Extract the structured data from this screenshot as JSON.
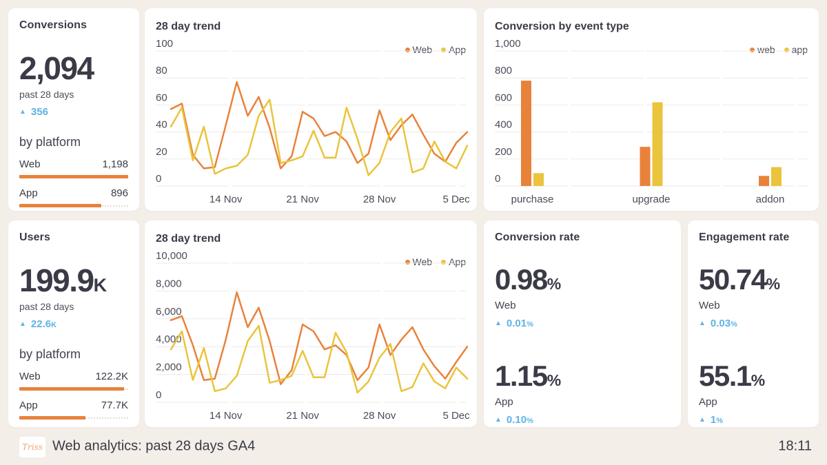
{
  "theme": {
    "background": "#F4EEE8",
    "card": "#FFFFFF",
    "heading": "#3B3B48",
    "muted": "#4B4B57",
    "delta_blue": "#5FB2E5",
    "web_orange": "#E8823B",
    "app_yellow": "#E9C43C",
    "grid": "#ECEAE7"
  },
  "footer": {
    "logo_text": "Triss",
    "title": "Web analytics: past 28 days GA4",
    "time": "18:11"
  },
  "cards": {
    "conversions": {
      "title": "Conversions",
      "value": "2,094",
      "value_suffix": "",
      "period": "past 28 days",
      "delta_value": "356",
      "delta_suffix": "",
      "breakdown_title": "by platform",
      "rows": [
        {
          "label": "Web",
          "value": "1,198",
          "pct": 100
        },
        {
          "label": "App",
          "value": "896",
          "pct": 75
        }
      ]
    },
    "users": {
      "title": "Users",
      "value": "199.9",
      "value_suffix": "K",
      "period": "past 28 days",
      "delta_value": "22.6",
      "delta_suffix": "K",
      "breakdown_title": "by platform",
      "rows": [
        {
          "label": "Web",
          "value": "122.2K",
          "pct": 96
        },
        {
          "label": "App",
          "value": "77.7K",
          "pct": 61
        }
      ]
    },
    "conversion_rate": {
      "title": "Conversion rate",
      "metrics": [
        {
          "value": "0.98",
          "unit": "%",
          "label": "Web",
          "delta_value": "0.01",
          "delta_unit": "%"
        },
        {
          "value": "1.15",
          "unit": "%",
          "label": "App",
          "delta_value": "0.10",
          "delta_unit": "%"
        }
      ]
    },
    "engagement_rate": {
      "title": "Engagement rate",
      "metrics": [
        {
          "value": "50.74",
          "unit": "%",
          "label": "Web",
          "delta_value": "0.03",
          "delta_unit": "%"
        },
        {
          "value": "55.1",
          "unit": "%",
          "label": "App",
          "delta_value": "1",
          "delta_unit": "%"
        }
      ]
    }
  },
  "chart_data": [
    {
      "type": "line",
      "title": "28 day trend",
      "legend_position": "top-right",
      "grid": true,
      "ylim": [
        0,
        100
      ],
      "ytick_values": [
        0,
        20,
        40,
        60,
        80,
        100
      ],
      "ytick_labels": [
        "0",
        "20",
        "40",
        "60",
        "80",
        "100"
      ],
      "x_tick_labels": [
        "14 Nov",
        "21 Nov",
        "28 Nov",
        "5 Dec"
      ],
      "x_tick_indices": [
        5,
        12,
        19,
        26
      ],
      "legend": [
        {
          "name": "Web",
          "color": "#E8823B"
        },
        {
          "name": "App",
          "color": "#E9C43C"
        }
      ],
      "series": [
        {
          "name": "Web",
          "color": "#E8823B",
          "values": [
            57,
            61,
            23,
            13,
            14,
            45,
            77,
            52,
            66,
            43,
            13,
            22,
            55,
            50,
            37,
            40,
            33,
            17,
            24,
            56,
            34,
            45,
            53,
            38,
            24,
            18,
            32,
            40
          ]
        },
        {
          "name": "App",
          "color": "#E9C43C",
          "values": [
            44,
            58,
            19,
            44,
            9,
            13,
            15,
            23,
            52,
            64,
            17,
            19,
            22,
            41,
            21,
            21,
            58,
            35,
            8,
            17,
            40,
            50,
            10,
            13,
            33,
            18,
            13,
            30
          ]
        }
      ]
    },
    {
      "type": "bar",
      "title": "Conversion by event type",
      "legend_position": "top-right",
      "grid": true,
      "ylim": [
        0,
        1000
      ],
      "ytick_values": [
        0,
        200,
        400,
        600,
        800,
        1000
      ],
      "ytick_labels": [
        "0",
        "200",
        "400",
        "600",
        "800",
        "1,000"
      ],
      "categories": [
        "purchase",
        "upgrade",
        "addon"
      ],
      "category_pos": [
        0.12,
        0.5,
        0.88
      ],
      "legend": [
        {
          "name": "web",
          "color": "#E8823B"
        },
        {
          "name": "app",
          "color": "#E9C43C"
        }
      ],
      "series": [
        {
          "name": "web",
          "color": "#E8823B",
          "values": [
            780,
            290,
            75
          ]
        },
        {
          "name": "app",
          "color": "#E9C43C",
          "values": [
            95,
            620,
            140
          ]
        }
      ]
    },
    {
      "type": "line",
      "title": "28 day trend",
      "legend_position": "top-right",
      "grid": true,
      "ylim": [
        0,
        10000
      ],
      "ytick_values": [
        0,
        2000,
        4000,
        6000,
        8000,
        10000
      ],
      "ytick_labels": [
        "0",
        "2,000",
        "4,000",
        "6,000",
        "8,000",
        "10,000"
      ],
      "x_tick_labels": [
        "14 Nov",
        "21 Nov",
        "28 Nov",
        "5 Dec"
      ],
      "x_tick_indices": [
        5,
        12,
        19,
        26
      ],
      "legend": [
        {
          "name": "Web",
          "color": "#E8823B"
        },
        {
          "name": "App",
          "color": "#E9C43C"
        }
      ],
      "series": [
        {
          "name": "Web",
          "color": "#E8823B",
          "values": [
            5900,
            6200,
            4100,
            1600,
            1700,
            4500,
            7900,
            5400,
            6800,
            4400,
            1300,
            2300,
            5600,
            5100,
            3800,
            4100,
            3400,
            1600,
            2500,
            5600,
            3400,
            4500,
            5400,
            3800,
            2600,
            1700,
            2900,
            4000
          ]
        },
        {
          "name": "App",
          "color": "#E9C43C",
          "values": [
            3800,
            5100,
            1600,
            3900,
            800,
            1000,
            1900,
            4400,
            5500,
            1400,
            1600,
            1900,
            3700,
            1800,
            1800,
            5000,
            3600,
            700,
            1500,
            3200,
            4200,
            800,
            1100,
            2800,
            1500,
            1000,
            2500,
            1700
          ]
        }
      ]
    }
  ]
}
